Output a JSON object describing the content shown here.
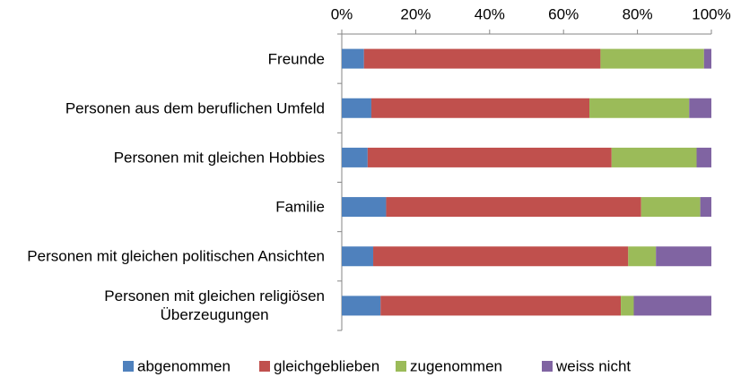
{
  "chart_data": {
    "type": "stacked-bar-horizontal",
    "categories": [
      "Freunde",
      "Personen aus dem beruflichen Umfeld",
      "Personen mit gleichen Hobbies",
      "Familie",
      "Personen mit gleichen politischen Ansichten",
      "Personen mit gleichen religiösen\nÜberzeugungen"
    ],
    "series": [
      {
        "name": "abgenommen",
        "color": "#4f81bd",
        "values": [
          6,
          8,
          7,
          12,
          8.5,
          10.5
        ]
      },
      {
        "name": "gleichgeblieben",
        "color": "#c0504d",
        "values": [
          64,
          59,
          66,
          69,
          69,
          65
        ]
      },
      {
        "name": "zugenommen",
        "color": "#9bbb59",
        "values": [
          28,
          27,
          23,
          16,
          7.5,
          3.5
        ]
      },
      {
        "name": "weiss nicht",
        "color": "#8064a2",
        "values": [
          2,
          6,
          4,
          3,
          15,
          21
        ]
      }
    ],
    "xlim": [
      0,
      100
    ],
    "xticks": [
      {
        "value": 0,
        "label": "0%"
      },
      {
        "value": 20,
        "label": "20%"
      },
      {
        "value": 40,
        "label": "40%"
      },
      {
        "value": 60,
        "label": "60%"
      },
      {
        "value": 80,
        "label": "80%"
      },
      {
        "value": 100,
        "label": "100%"
      }
    ],
    "legend": "bottom"
  }
}
